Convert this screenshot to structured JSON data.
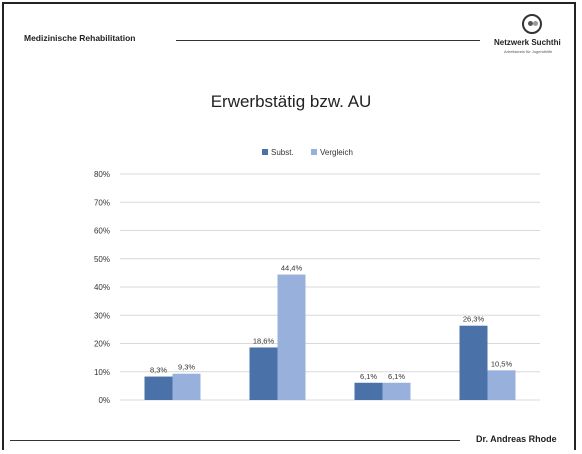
{
  "header": {
    "title": "Medizinische Rehabilitation",
    "logo_name": "Netzwerk Suchthi",
    "logo_sub": "Arbeitskreis für Jugendhilfe"
  },
  "footer": {
    "author": "Dr. Andreas Rhode"
  },
  "colors": {
    "subst": "#4a72a9",
    "vergleich": "#97b0dc",
    "grid": "#d9d9d9",
    "axis_text": "#333333"
  },
  "chart_data": {
    "type": "bar",
    "title": "Erwerbstätig bzw. AU",
    "xlabel": "",
    "ylabel": "",
    "categories": [
      "",
      "",
      "",
      ""
    ],
    "ylim": [
      0,
      80
    ],
    "yticks": [
      "0%",
      "10%",
      "20%",
      "30%",
      "40%",
      "50%",
      "60%",
      "70%",
      "80%"
    ],
    "grid": true,
    "legend_position": "top",
    "series": [
      {
        "name": "Subst.",
        "values": [
          8.3,
          18.6,
          6.1,
          26.3
        ],
        "labels": [
          "8,3%",
          "18,6%",
          "6,1%",
          "26,3%"
        ]
      },
      {
        "name": "Vergleich",
        "values": [
          9.3,
          44.4,
          6.1,
          10.5
        ],
        "labels": [
          "9,3%",
          "44,4%",
          "6,1%",
          "10,5%"
        ]
      }
    ]
  }
}
